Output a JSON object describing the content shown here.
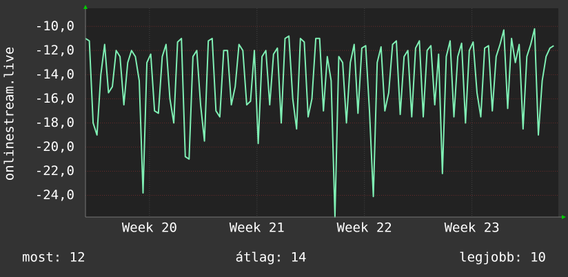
{
  "chart_data": {
    "type": "line",
    "y_label": "onlinestream.live",
    "x": [
      0,
      0.25,
      0.5,
      0.75,
      1,
      1.25,
      1.5,
      1.75,
      2,
      2.25,
      2.5,
      2.75,
      3,
      3.25,
      3.5,
      3.75,
      4,
      4.25,
      4.5,
      4.75,
      5,
      5.25,
      5.5,
      5.75,
      6,
      6.25,
      6.5,
      6.75,
      7,
      7.25,
      7.5,
      7.75,
      8,
      8.25,
      8.5,
      8.75,
      9,
      9.25,
      9.5,
      9.75,
      10,
      10.25,
      10.5,
      10.75,
      11,
      11.25,
      11.5,
      11.75,
      12,
      12.25,
      12.5,
      12.75,
      13,
      13.25,
      13.5,
      13.75,
      14,
      14.25,
      14.5,
      14.75,
      15,
      15.25,
      15.5,
      15.75,
      16,
      16.25,
      16.5,
      16.75,
      17,
      17.25,
      17.5,
      17.75,
      18,
      18.25,
      18.5,
      18.75,
      19,
      19.25,
      19.5,
      19.75,
      20,
      20.25,
      20.5,
      20.75,
      21,
      21.25,
      21.5,
      21.75,
      22,
      22.25,
      22.5,
      22.75,
      23,
      23.25,
      23.5,
      23.75,
      24,
      24.25,
      24.5,
      24.75,
      25,
      25.25,
      25.5,
      25.75,
      26,
      26.25,
      26.5,
      26.75,
      27,
      27.25,
      27.5,
      27.75,
      28,
      28.25,
      28.5,
      28.75,
      29,
      29.25,
      29.5,
      29.75,
      30,
      30.25,
      30.5
    ],
    "values": [
      -11,
      -11.2,
      -18,
      -19,
      -14,
      -11.5,
      -15.5,
      -15,
      -12,
      -12.5,
      -16.5,
      -13,
      -12,
      -12.5,
      -14.5,
      -23.8,
      -13,
      -12.3,
      -17,
      -17.2,
      -12.5,
      -11.5,
      -16,
      -18,
      -11.3,
      -11,
      -20.8,
      -21,
      -12.5,
      -12,
      -16.5,
      -19.5,
      -11.2,
      -11,
      -17,
      -17.5,
      -12,
      -12,
      -16.5,
      -15,
      -11.5,
      -12,
      -16.5,
      -16.2,
      -12,
      -19.7,
      -12.5,
      -12,
      -16.5,
      -12.3,
      -11.8,
      -18,
      -11,
      -10.8,
      -16,
      -18.5,
      -11,
      -11.3,
      -17.5,
      -16,
      -11,
      -11,
      -17,
      -12.5,
      -14.5,
      -25.8,
      -12.5,
      -13,
      -18,
      -13,
      -11.5,
      -17.2,
      -11.8,
      -11.6,
      -17,
      -24.1,
      -13,
      -11.7,
      -17,
      -15.5,
      -11.5,
      -11.2,
      -17.3,
      -12.5,
      -12,
      -17.5,
      -11.8,
      -11.2,
      -17.5,
      -12,
      -11.6,
      -16.5,
      -12.3,
      -22.2,
      -12.5,
      -11.2,
      -17.5,
      -12.5,
      -11.4,
      -18,
      -12,
      -11.3,
      -15.5,
      -17.5,
      -11.8,
      -11.6,
      -17,
      -12.5,
      -11.5,
      -10.3,
      -16.8,
      -11,
      -13,
      -11.5,
      -18.5,
      -12.5,
      -11.5,
      -10.2,
      -19,
      -14.5,
      -12.5,
      -11.8,
      -11.6
    ],
    "color": "#7ff0b4",
    "xlim": [
      0,
      30.8
    ],
    "ylim": [
      -25.8,
      -8.5
    ],
    "xticks": [
      {
        "value": 4.17,
        "label": "Week 20"
      },
      {
        "value": 11.17,
        "label": "Week 21"
      },
      {
        "value": 18.17,
        "label": "Week 22"
      },
      {
        "value": 25.17,
        "label": "Week 23"
      }
    ],
    "yticks": [
      {
        "value": -24,
        "label": "-24,0"
      },
      {
        "value": -22,
        "label": "-22,0"
      },
      {
        "value": -20,
        "label": "-20,0"
      },
      {
        "value": -18,
        "label": "-18,0"
      },
      {
        "value": -16,
        "label": "-16,0"
      },
      {
        "value": -14,
        "label": "-14,0"
      },
      {
        "value": -12,
        "label": "-12,0"
      },
      {
        "value": -10,
        "label": "-10,0"
      }
    ],
    "grid": true,
    "footer": [
      "most: 12",
      "átlag: 14",
      "legjobb: 10"
    ]
  }
}
